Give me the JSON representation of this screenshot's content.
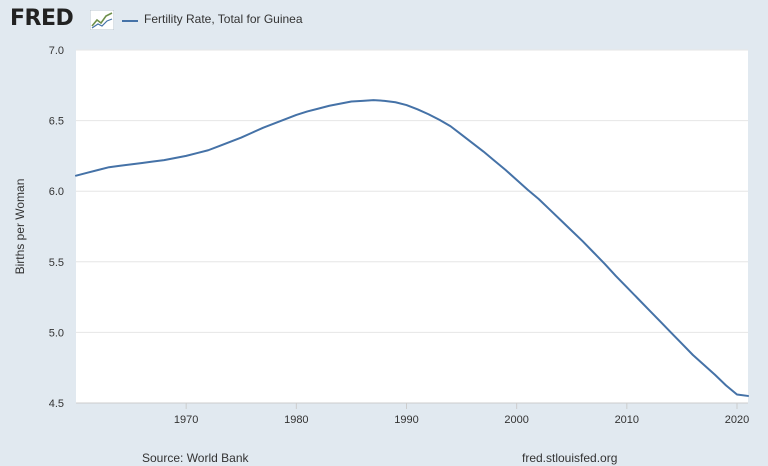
{
  "header": {
    "logo_text": "FRED",
    "logo_icon": "trend-chart-icon",
    "legend_label": "Fertility Rate, Total for Guinea"
  },
  "footer": {
    "source": "Source: World Bank",
    "site": "fred.stlouisfed.org"
  },
  "colors": {
    "series": "#4572a7",
    "background": "#e1e9f0",
    "plot": "#ffffff",
    "grid": "#e6e6e6"
  },
  "chart_data": {
    "type": "line",
    "title": "",
    "xlabel": "",
    "ylabel": "Births per Woman",
    "xlim": [
      1960,
      2021
    ],
    "ylim": [
      4.5,
      7.0
    ],
    "xticks": [
      1970,
      1980,
      1990,
      2000,
      2010,
      2020
    ],
    "yticks": [
      4.5,
      5.0,
      5.5,
      6.0,
      6.5,
      7.0
    ],
    "ytick_labels": [
      "4.5",
      "5.0",
      "5.5",
      "6.0",
      "6.5",
      "7.0"
    ],
    "grid": true,
    "legend_position": "top-left",
    "series": [
      {
        "name": "Fertility Rate, Total for Guinea",
        "x": [
          1960,
          1961,
          1962,
          1963,
          1964,
          1965,
          1966,
          1967,
          1968,
          1969,
          1970,
          1971,
          1972,
          1973,
          1974,
          1975,
          1976,
          1977,
          1978,
          1979,
          1980,
          1981,
          1982,
          1983,
          1984,
          1985,
          1986,
          1987,
          1988,
          1989,
          1990,
          1991,
          1992,
          1993,
          1994,
          1995,
          1996,
          1997,
          1998,
          1999,
          2000,
          2001,
          2002,
          2003,
          2004,
          2005,
          2006,
          2007,
          2008,
          2009,
          2010,
          2011,
          2012,
          2013,
          2014,
          2015,
          2016,
          2017,
          2018,
          2019,
          2020,
          2021
        ],
        "values": [
          6.11,
          6.13,
          6.15,
          6.17,
          6.18,
          6.19,
          6.2,
          6.21,
          6.22,
          6.235,
          6.25,
          6.27,
          6.29,
          6.32,
          6.35,
          6.38,
          6.415,
          6.45,
          6.48,
          6.51,
          6.54,
          6.565,
          6.585,
          6.605,
          6.62,
          6.635,
          6.64,
          6.645,
          6.64,
          6.63,
          6.61,
          6.58,
          6.545,
          6.505,
          6.46,
          6.4,
          6.34,
          6.28,
          6.215,
          6.15,
          6.08,
          6.01,
          5.945,
          5.87,
          5.795,
          5.72,
          5.645,
          5.565,
          5.485,
          5.4,
          5.32,
          5.24,
          5.16,
          5.08,
          5.0,
          4.92,
          4.84,
          4.77,
          4.7,
          4.625,
          4.56,
          4.55
        ]
      }
    ]
  }
}
